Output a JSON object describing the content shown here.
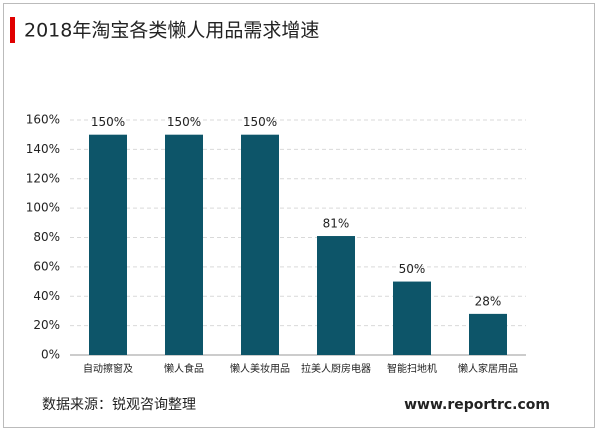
{
  "chart_data": {
    "type": "bar",
    "title": "2018年淘宝各类懒人用品需求增速",
    "categories": [
      "自动擦窗及",
      "懒人食品",
      "懒人美妆用品",
      "拉美人厨房电器",
      "智能扫地机",
      "懒人家居用品"
    ],
    "values": [
      150,
      150,
      150,
      81,
      50,
      28
    ],
    "value_labels": [
      "150%",
      "150%",
      "150%",
      "81%",
      "50%",
      "28%"
    ],
    "color": "#0d5569",
    "ylim": [
      0,
      160
    ],
    "yticks": [
      {
        "value": 0,
        "label": "0%"
      },
      {
        "value": 20,
        "label": "20%"
      },
      {
        "value": 40,
        "label": "40%"
      },
      {
        "value": 60,
        "label": "60%"
      },
      {
        "value": 80,
        "label": "80%"
      },
      {
        "value": 100,
        "label": "100%"
      },
      {
        "value": 120,
        "label": "120%"
      },
      {
        "value": 140,
        "label": "140%"
      },
      {
        "value": 160,
        "label": "160%"
      }
    ],
    "grid": true,
    "source": "数据来源：锐观咨询整理",
    "website": "www.reportrc.com"
  }
}
